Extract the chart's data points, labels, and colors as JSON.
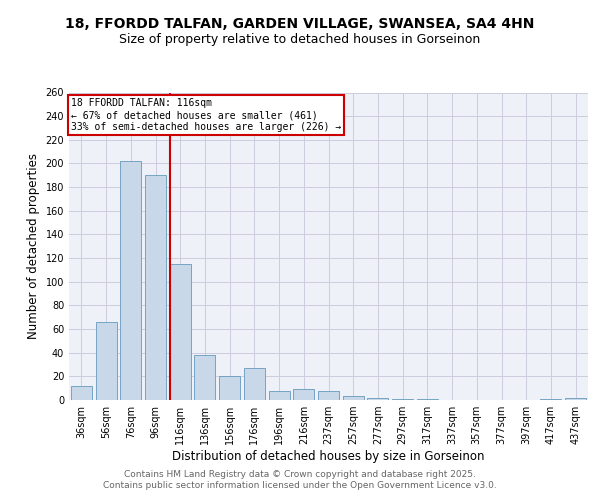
{
  "title_line1": "18, FFORDD TALFAN, GARDEN VILLAGE, SWANSEA, SA4 4HN",
  "title_line2": "Size of property relative to detached houses in Gorseinon",
  "xlabel": "Distribution of detached houses by size in Gorseinon",
  "ylabel": "Number of detached properties",
  "categories": [
    "36sqm",
    "56sqm",
    "76sqm",
    "96sqm",
    "116sqm",
    "136sqm",
    "156sqm",
    "176sqm",
    "196sqm",
    "216sqm",
    "237sqm",
    "257sqm",
    "277sqm",
    "297sqm",
    "317sqm",
    "337sqm",
    "357sqm",
    "377sqm",
    "397sqm",
    "417sqm",
    "437sqm"
  ],
  "values": [
    12,
    66,
    202,
    190,
    115,
    38,
    20,
    27,
    8,
    9,
    8,
    3,
    2,
    1,
    1,
    0,
    0,
    0,
    0,
    1,
    2
  ],
  "bar_color": "#c8d8e8",
  "bar_edge_color": "#6699bb",
  "red_line_index": 4,
  "red_line_label": "18 FFORDD TALFAN: 116sqm",
  "annotation_line2": "← 67% of detached houses are smaller (461)",
  "annotation_line3": "33% of semi-detached houses are larger (226) →",
  "annotation_box_color": "#ffffff",
  "annotation_box_edge_color": "#cc0000",
  "red_line_color": "#cc0000",
  "ylim": [
    0,
    260
  ],
  "yticks": [
    0,
    20,
    40,
    60,
    80,
    100,
    120,
    140,
    160,
    180,
    200,
    220,
    240,
    260
  ],
  "grid_color": "#ccccdd",
  "background_color": "#eef2f8",
  "footer_line1": "Contains HM Land Registry data © Crown copyright and database right 2025.",
  "footer_line2": "Contains public sector information licensed under the Open Government Licence v3.0.",
  "title_fontsize": 10,
  "subtitle_fontsize": 9,
  "axis_label_fontsize": 8.5,
  "tick_fontsize": 7,
  "footer_fontsize": 6.5
}
